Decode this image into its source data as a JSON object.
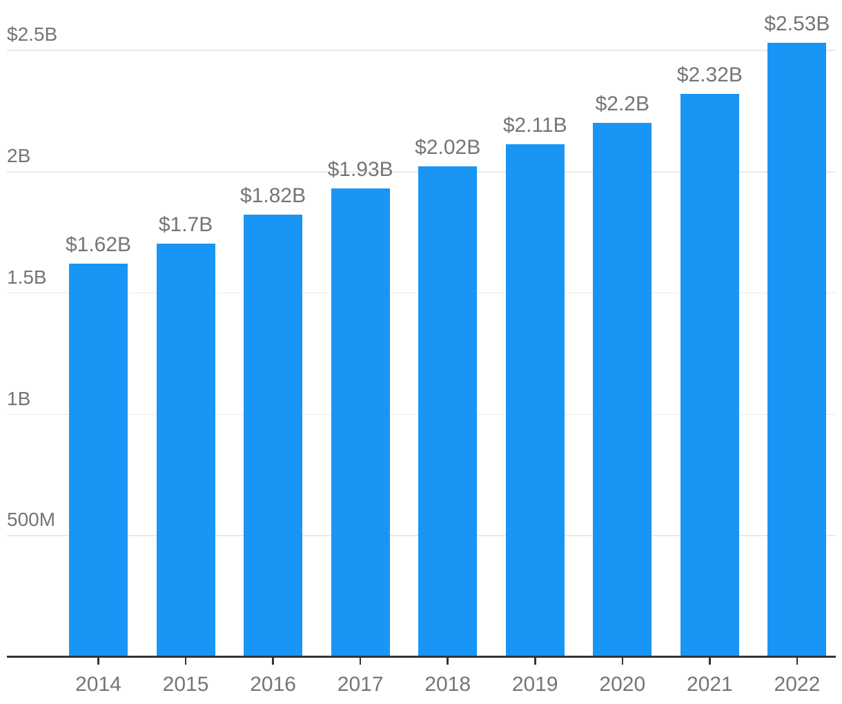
{
  "chart_data": {
    "type": "bar",
    "title": "",
    "xlabel": "",
    "ylabel": "",
    "categories": [
      "2014",
      "2015",
      "2016",
      "2017",
      "2018",
      "2019",
      "2020",
      "2021",
      "2022"
    ],
    "values": [
      1.62,
      1.7,
      1.82,
      1.93,
      2.02,
      2.11,
      2.2,
      2.32,
      2.53
    ],
    "bar_labels": [
      "$1.62B",
      "$1.7B",
      "$1.82B",
      "$1.93B",
      "$2.02B",
      "$2.11B",
      "$2.2B",
      "$2.32B",
      "$2.53B"
    ],
    "y_ticks": [
      {
        "value": 2.5,
        "label": "$2.5B"
      },
      {
        "value": 2.0,
        "label": "2B"
      },
      {
        "value": 1.5,
        "label": "1.5B"
      },
      {
        "value": 1.0,
        "label": "1B"
      },
      {
        "value": 0.5,
        "label": "500M"
      }
    ],
    "ylim": [
      0,
      2.7
    ],
    "grid": "horizontal-only",
    "legend": "none",
    "colors": {
      "bar": "#1996f5",
      "text": "#757575",
      "axis": "#333333",
      "gridline": "#e9e9e9",
      "background": "#ffffff"
    }
  }
}
